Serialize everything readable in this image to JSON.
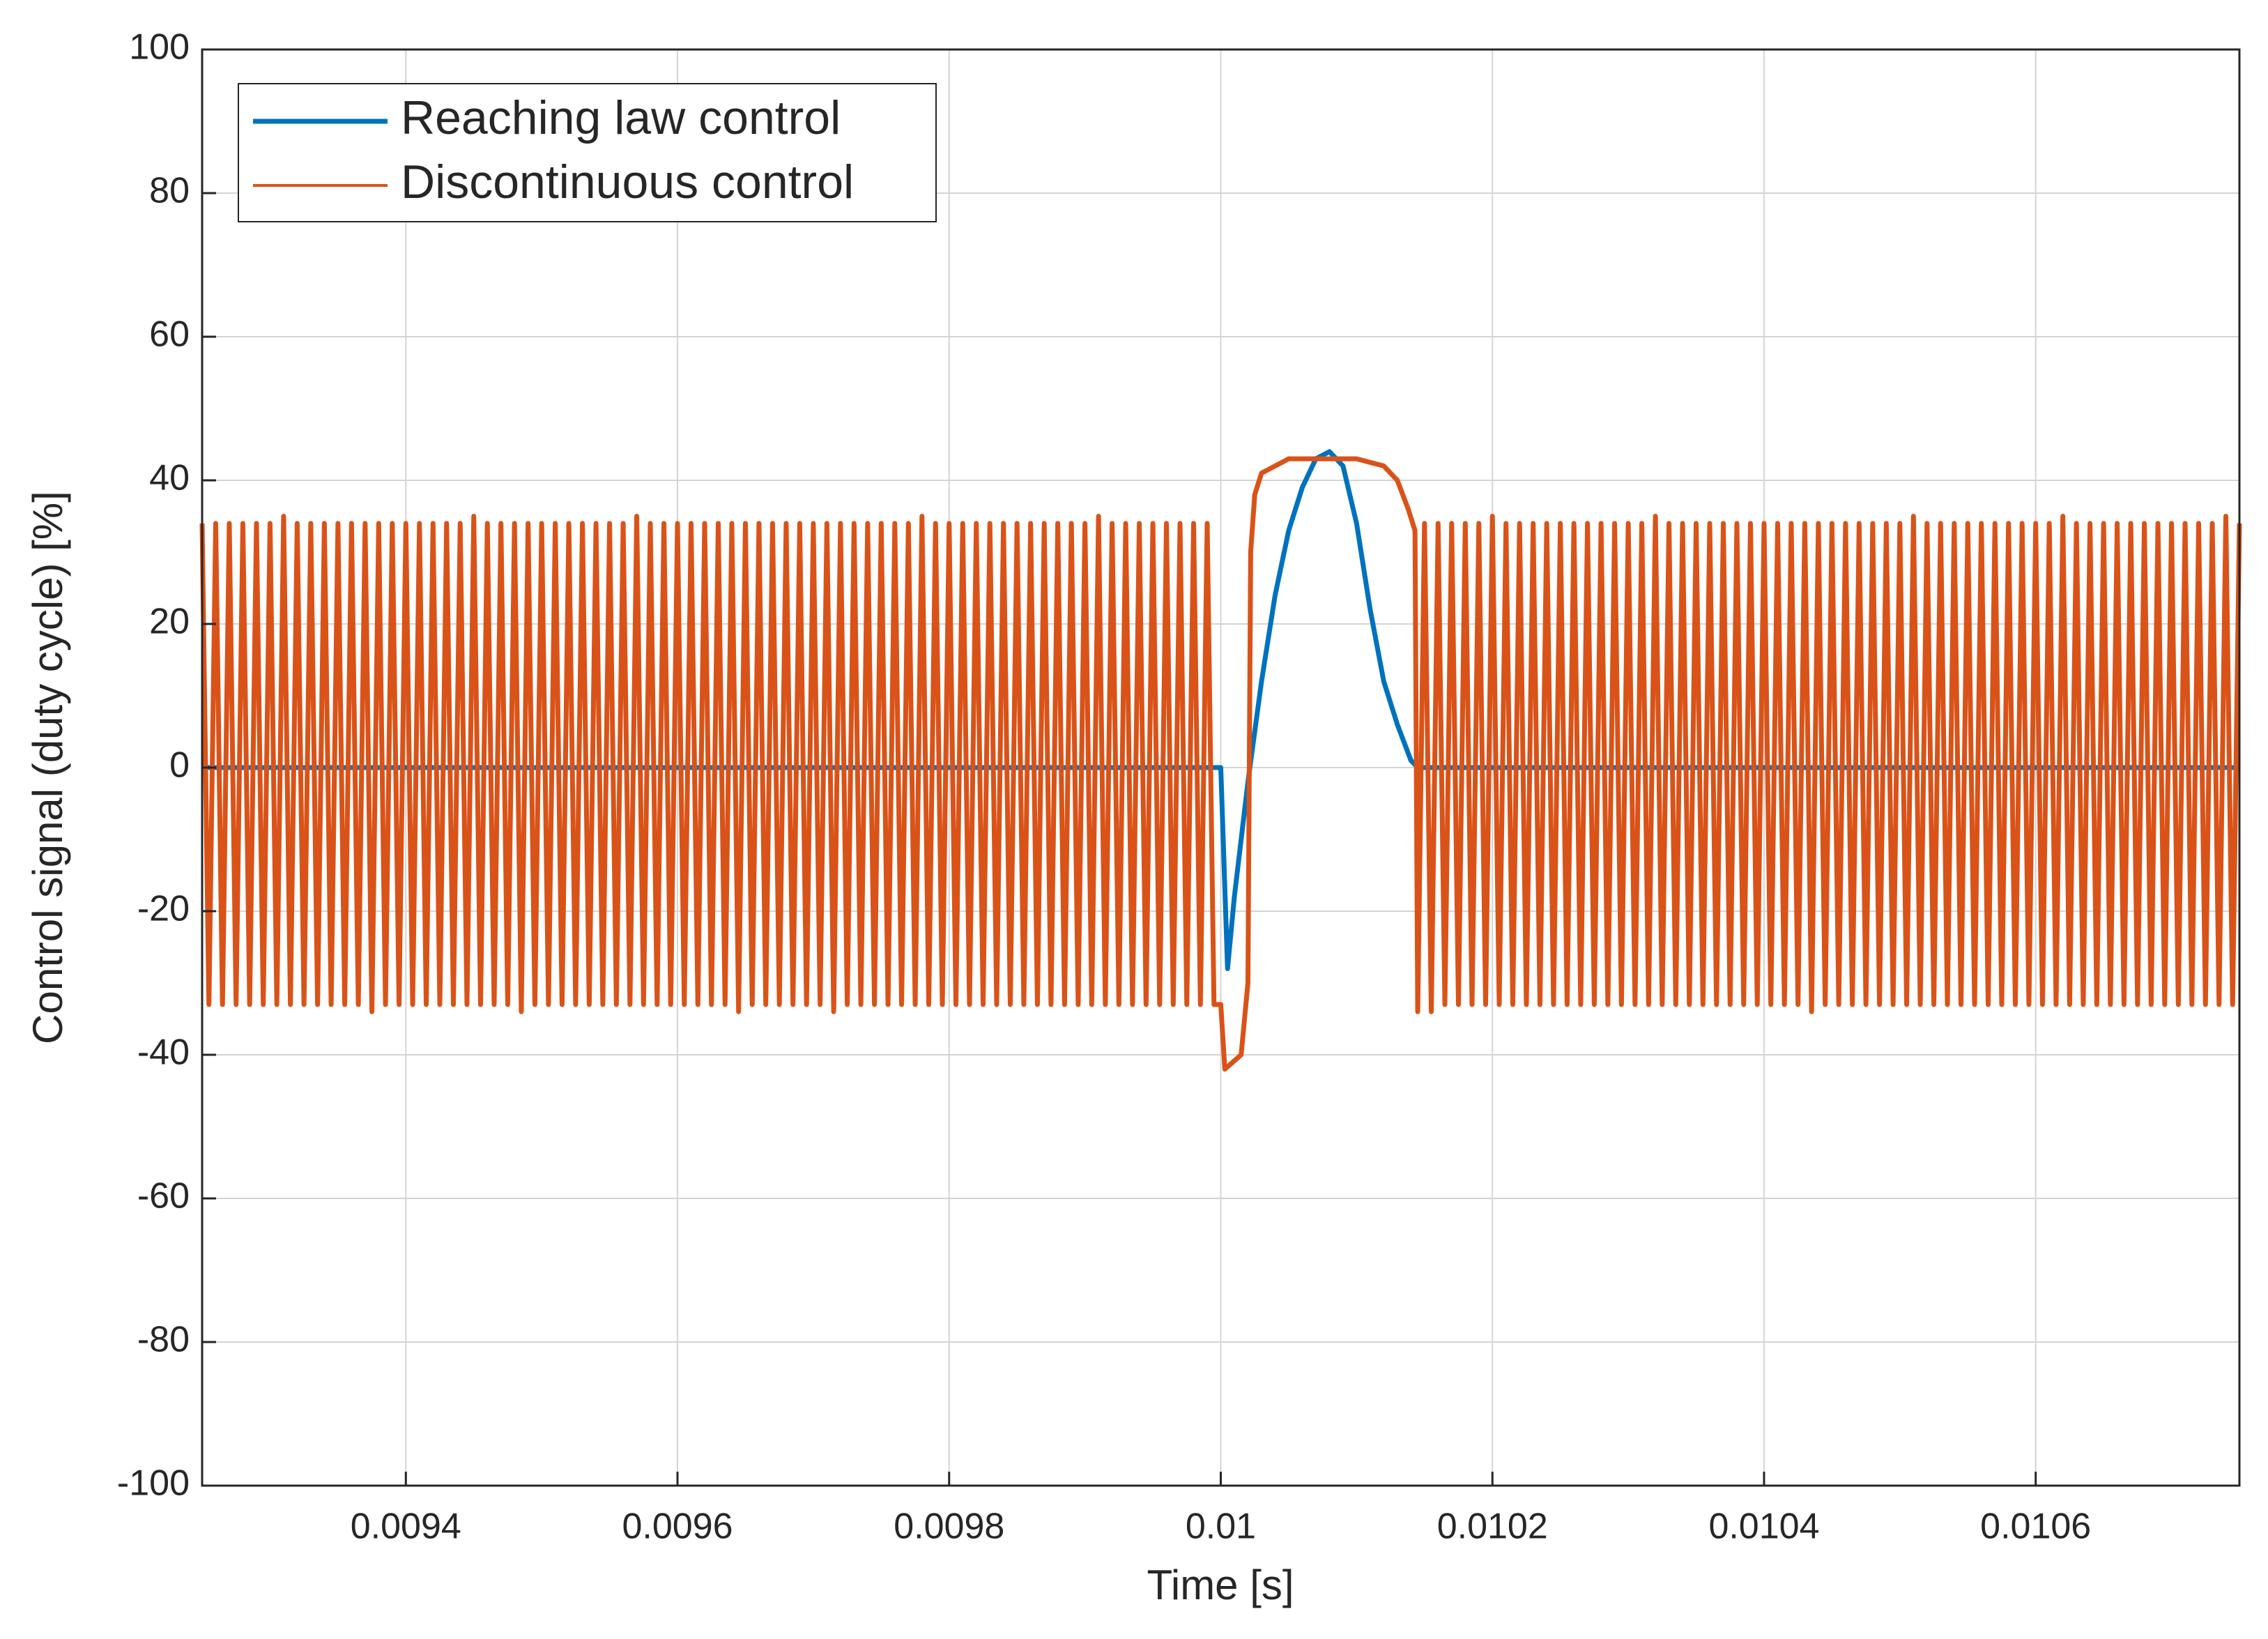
{
  "chart_data": {
    "type": "line",
    "xlabel": "Time [s]",
    "ylabel": "Control signal (duty cycle) [%]",
    "xlim": [
      0.00925,
      0.01075
    ],
    "ylim": [
      -100,
      100
    ],
    "xticks": [
      0.0094,
      0.0096,
      0.0098,
      0.01,
      0.0102,
      0.0104,
      0.0106
    ],
    "yticks": [
      -100,
      -80,
      -60,
      -40,
      -20,
      0,
      20,
      40,
      60,
      80,
      100
    ],
    "grid": true,
    "legend": "upper left",
    "series": [
      {
        "name": "Reaching law control",
        "color": "#0072BD",
        "x": [
          0.00925,
          0.01,
          0.010005,
          0.01001,
          0.01002,
          0.01003,
          0.01004,
          0.01005,
          0.01006,
          0.01007,
          0.01008,
          0.01009,
          0.0101,
          0.01011,
          0.01012,
          0.01013,
          0.01014,
          0.010145,
          0.01075
        ],
        "values": [
          0,
          0,
          -28,
          -18,
          -2,
          12,
          24,
          33,
          39,
          43,
          44,
          42,
          34,
          22,
          12,
          6,
          1,
          0,
          0
        ]
      },
      {
        "name": "Discontinuous control",
        "color": "#D95319",
        "x": [
          0.00925,
          0.009255,
          0.00926,
          0.009265,
          0.00927,
          0.009275,
          0.00928,
          0.009285,
          0.00929,
          0.009295,
          0.0093,
          0.009305,
          0.00931,
          0.009315,
          0.00932,
          0.009325,
          0.00933,
          0.009335,
          0.00934,
          0.009345,
          0.00935,
          0.009355,
          0.00936,
          0.009365,
          0.00937,
          0.009375,
          0.00938,
          0.009385,
          0.00939,
          0.009395,
          0.0094,
          0.009405,
          0.00941,
          0.009415,
          0.00942,
          0.009425,
          0.00943,
          0.009435,
          0.00944,
          0.009445,
          0.00945,
          0.009455,
          0.00946,
          0.009465,
          0.00947,
          0.009475,
          0.00948,
          0.009485,
          0.00949,
          0.009495,
          0.0095,
          0.009505,
          0.00951,
          0.009515,
          0.00952,
          0.009525,
          0.00953,
          0.009535,
          0.00954,
          0.009545,
          0.00955,
          0.009555,
          0.00956,
          0.009565,
          0.00957,
          0.009575,
          0.00958,
          0.009585,
          0.00959,
          0.009595,
          0.0096,
          0.009605,
          0.00961,
          0.009615,
          0.00962,
          0.009625,
          0.00963,
          0.009635,
          0.00964,
          0.009645,
          0.00965,
          0.009655,
          0.00966,
          0.009665,
          0.00967,
          0.009675,
          0.00968,
          0.009685,
          0.00969,
          0.009695,
          0.0097,
          0.009705,
          0.00971,
          0.009715,
          0.00972,
          0.009725,
          0.00973,
          0.009735,
          0.00974,
          0.009745,
          0.00975,
          0.009755,
          0.00976,
          0.009765,
          0.00977,
          0.009775,
          0.00978,
          0.009785,
          0.00979,
          0.009795,
          0.0098,
          0.009805,
          0.00981,
          0.009815,
          0.00982,
          0.009825,
          0.00983,
          0.009835,
          0.00984,
          0.009845,
          0.00985,
          0.009855,
          0.00986,
          0.009865,
          0.00987,
          0.009875,
          0.00988,
          0.009885,
          0.00989,
          0.009895,
          0.0099,
          0.009905,
          0.00991,
          0.009915,
          0.00992,
          0.009925,
          0.00993,
          0.009935,
          0.00994,
          0.009945,
          0.00995,
          0.009955,
          0.00996,
          0.009965,
          0.00997,
          0.009975,
          0.00998,
          0.009985,
          0.00999,
          0.009995,
          0.01,
          0.010003,
          0.010015,
          0.01002,
          0.010022,
          0.010025,
          0.01003,
          0.01005,
          0.01008,
          0.0101,
          0.01012,
          0.01013,
          0.010138,
          0.010143,
          0.010145,
          0.01015,
          0.010155,
          0.01016,
          0.010165,
          0.01017,
          0.010175,
          0.01018,
          0.010185,
          0.01019,
          0.010195,
          0.0102,
          0.010205,
          0.01021,
          0.010215,
          0.01022,
          0.010225,
          0.01023,
          0.010235,
          0.01024,
          0.010245,
          0.01025,
          0.010255,
          0.01026,
          0.010265,
          0.01027,
          0.010275,
          0.01028,
          0.010285,
          0.01029,
          0.010295,
          0.0103,
          0.010305,
          0.01031,
          0.010315,
          0.01032,
          0.010325,
          0.01033,
          0.010335,
          0.01034,
          0.010345,
          0.01035,
          0.010355,
          0.01036,
          0.010365,
          0.01037,
          0.010375,
          0.01038,
          0.010385,
          0.01039,
          0.010395,
          0.0104,
          0.010405,
          0.01041,
          0.010415,
          0.01042,
          0.010425,
          0.01043,
          0.010435,
          0.01044,
          0.010445,
          0.01045,
          0.010455,
          0.01046,
          0.010465,
          0.01047,
          0.010475,
          0.01048,
          0.010485,
          0.01049,
          0.010495,
          0.0105,
          0.010505,
          0.01051,
          0.010515,
          0.01052,
          0.010525,
          0.01053,
          0.010535,
          0.01054,
          0.010545,
          0.01055,
          0.010555,
          0.01056,
          0.010565,
          0.01057,
          0.010575,
          0.01058,
          0.010585,
          0.01059,
          0.010595,
          0.0106,
          0.010605,
          0.01061,
          0.010615,
          0.01062,
          0.010625,
          0.01063,
          0.010635,
          0.01064,
          0.010645,
          0.01065,
          0.010655,
          0.01066,
          0.010665,
          0.01067,
          0.010675,
          0.01068,
          0.010685,
          0.01069,
          0.010695,
          0.0107,
          0.010705,
          0.01071,
          0.010715,
          0.01072,
          0.010725,
          0.01073,
          0.010735,
          0.01074,
          0.010745,
          0.01075
        ],
        "values": [
          34,
          -33,
          34,
          -33,
          34,
          -33,
          34,
          -33,
          34,
          -33,
          34,
          -33,
          35,
          -33,
          34,
          -33,
          34,
          -33,
          34,
          -33,
          34,
          -33,
          34,
          -33,
          34,
          -34,
          34,
          -33,
          34,
          -33,
          34,
          -33,
          34,
          -33,
          34,
          -33,
          34,
          -33,
          34,
          -33,
          35,
          -33,
          34,
          -33,
          34,
          -33,
          34,
          -34,
          34,
          -33,
          34,
          -33,
          34,
          -33,
          34,
          -33,
          34,
          -33,
          34,
          -33,
          34,
          -33,
          34,
          -33,
          35,
          -33,
          34,
          -33,
          34,
          -33,
          34,
          -33,
          34,
          -33,
          34,
          -33,
          34,
          -33,
          34,
          -34,
          34,
          -33,
          34,
          -33,
          34,
          -33,
          34,
          -33,
          34,
          -33,
          34,
          -33,
          34,
          -34,
          34,
          -33,
          34,
          -33,
          34,
          -33,
          34,
          -33,
          34,
          -33,
          34,
          -33,
          35,
          -33,
          34,
          -33,
          34,
          -33,
          34,
          -33,
          34,
          -33,
          34,
          -33,
          34,
          -33,
          34,
          -33,
          34,
          -33,
          34,
          -33,
          34,
          -33,
          34,
          -33,
          34,
          -33,
          35,
          -33,
          34,
          -33,
          34,
          -33,
          34,
          -33,
          34,
          -33,
          34,
          -33,
          34,
          -33,
          34,
          -33,
          34,
          -33,
          -33,
          -42,
          -40,
          -30,
          30,
          38,
          41,
          43,
          43,
          43,
          42,
          40,
          36,
          33,
          -34,
          34,
          -34,
          34,
          -33,
          34,
          -33,
          34,
          -33,
          34,
          -33,
          35,
          -33,
          34,
          -33,
          34,
          -33,
          34,
          -33,
          34,
          -33,
          34,
          -33,
          34,
          -33,
          34,
          -33,
          34,
          -33,
          34,
          -33,
          34,
          -33,
          34,
          -33,
          35,
          -33,
          34,
          -33,
          34,
          -33,
          34,
          -33,
          34,
          -33,
          34,
          -33,
          34,
          -33,
          34,
          -33,
          34,
          -33,
          34,
          -33,
          34,
          -33,
          34,
          -34,
          34,
          -33,
          34,
          -33,
          34,
          -33,
          34,
          -33,
          34,
          -33,
          34,
          -33,
          34,
          -33,
          35,
          -33,
          34,
          -33,
          34,
          -33,
          34,
          -33,
          34,
          -33,
          34,
          -33,
          34,
          -33,
          34,
          -33,
          34,
          -33,
          34,
          -33,
          34,
          -33,
          35,
          -33,
          34,
          -33,
          34,
          -33,
          34,
          -33,
          34,
          -33,
          34,
          -33,
          34,
          -33,
          34,
          -33,
          34,
          -33,
          34,
          -33,
          34,
          -33,
          34,
          -33,
          35,
          -33,
          34
        ]
      }
    ]
  }
}
